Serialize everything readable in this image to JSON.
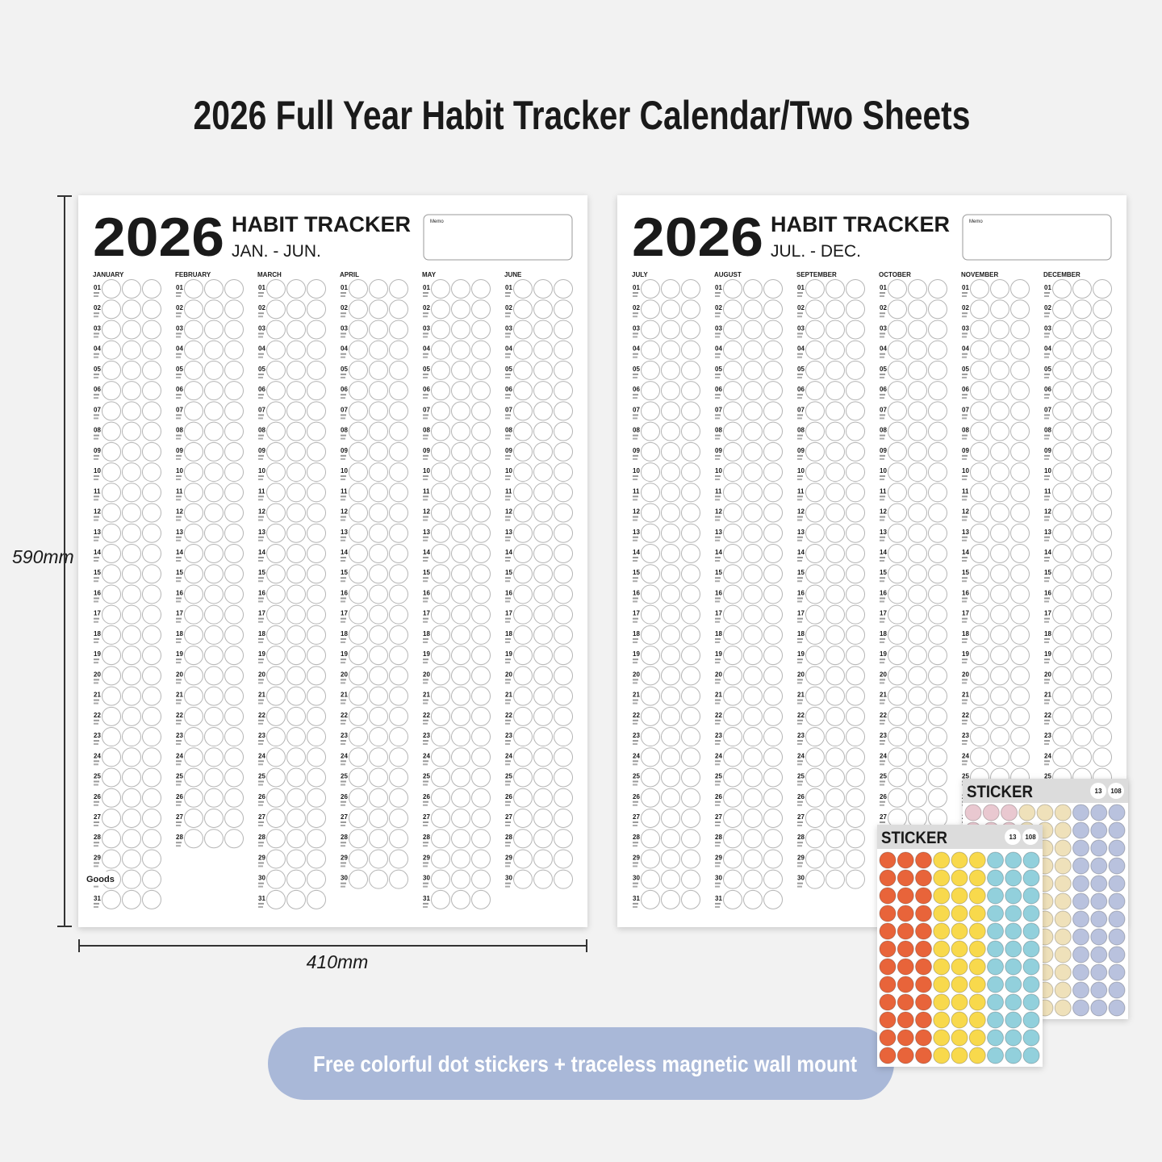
{
  "title": "2026 Full Year Habit Tracker Calendar/Two Sheets",
  "dimensions": {
    "height": "590mm",
    "width": "410mm"
  },
  "day_labels": [
    "01",
    "02",
    "03",
    "04",
    "05",
    "06",
    "07",
    "08",
    "09",
    "10",
    "11",
    "12",
    "13",
    "14",
    "15",
    "16",
    "17",
    "18",
    "19",
    "20",
    "21",
    "22",
    "23",
    "24",
    "25",
    "26",
    "27",
    "28",
    "29",
    "30",
    "31"
  ],
  "circles_per_day": 3,
  "sheets": [
    {
      "year": "2026",
      "heading": "HABIT TRACKER",
      "range": "JAN. - JUN.",
      "memo": "Memo",
      "watermark": "Goods",
      "months": [
        {
          "name": "JANUARY",
          "days": 31
        },
        {
          "name": "FEBRUARY",
          "days": 28
        },
        {
          "name": "MARCH",
          "days": 31
        },
        {
          "name": "APRIL",
          "days": 30
        },
        {
          "name": "MAY",
          "days": 31
        },
        {
          "name": "JUNE",
          "days": 30
        }
      ]
    },
    {
      "year": "2026",
      "heading": "HABIT TRACKER",
      "range": "JUL. - DEC.",
      "memo": "Memo",
      "months": [
        {
          "name": "JULY",
          "days": 31
        },
        {
          "name": "AUGUST",
          "days": 31
        },
        {
          "name": "SEPTEMBER",
          "days": 30
        },
        {
          "name": "OCTOBER",
          "days": 31
        },
        {
          "name": "NOVEMBER",
          "days": 30
        },
        {
          "name": "DECEMBER",
          "days": 31
        }
      ]
    }
  ],
  "stickers": [
    {
      "title": "STICKER",
      "badges": [
        "13",
        "108"
      ],
      "colors": [
        "#e9c8d0",
        "#efe1ba",
        "#b9c2de"
      ],
      "columns_per_color": 3,
      "rows": 12
    },
    {
      "title": "STICKER",
      "badges": [
        "13",
        "108"
      ],
      "colors": [
        "#e8643a",
        "#f8d94c",
        "#92d0dc"
      ],
      "columns_per_color": 3,
      "rows": 12
    }
  ],
  "banner": "Free colorful dot stickers + traceless magnetic wall mount"
}
